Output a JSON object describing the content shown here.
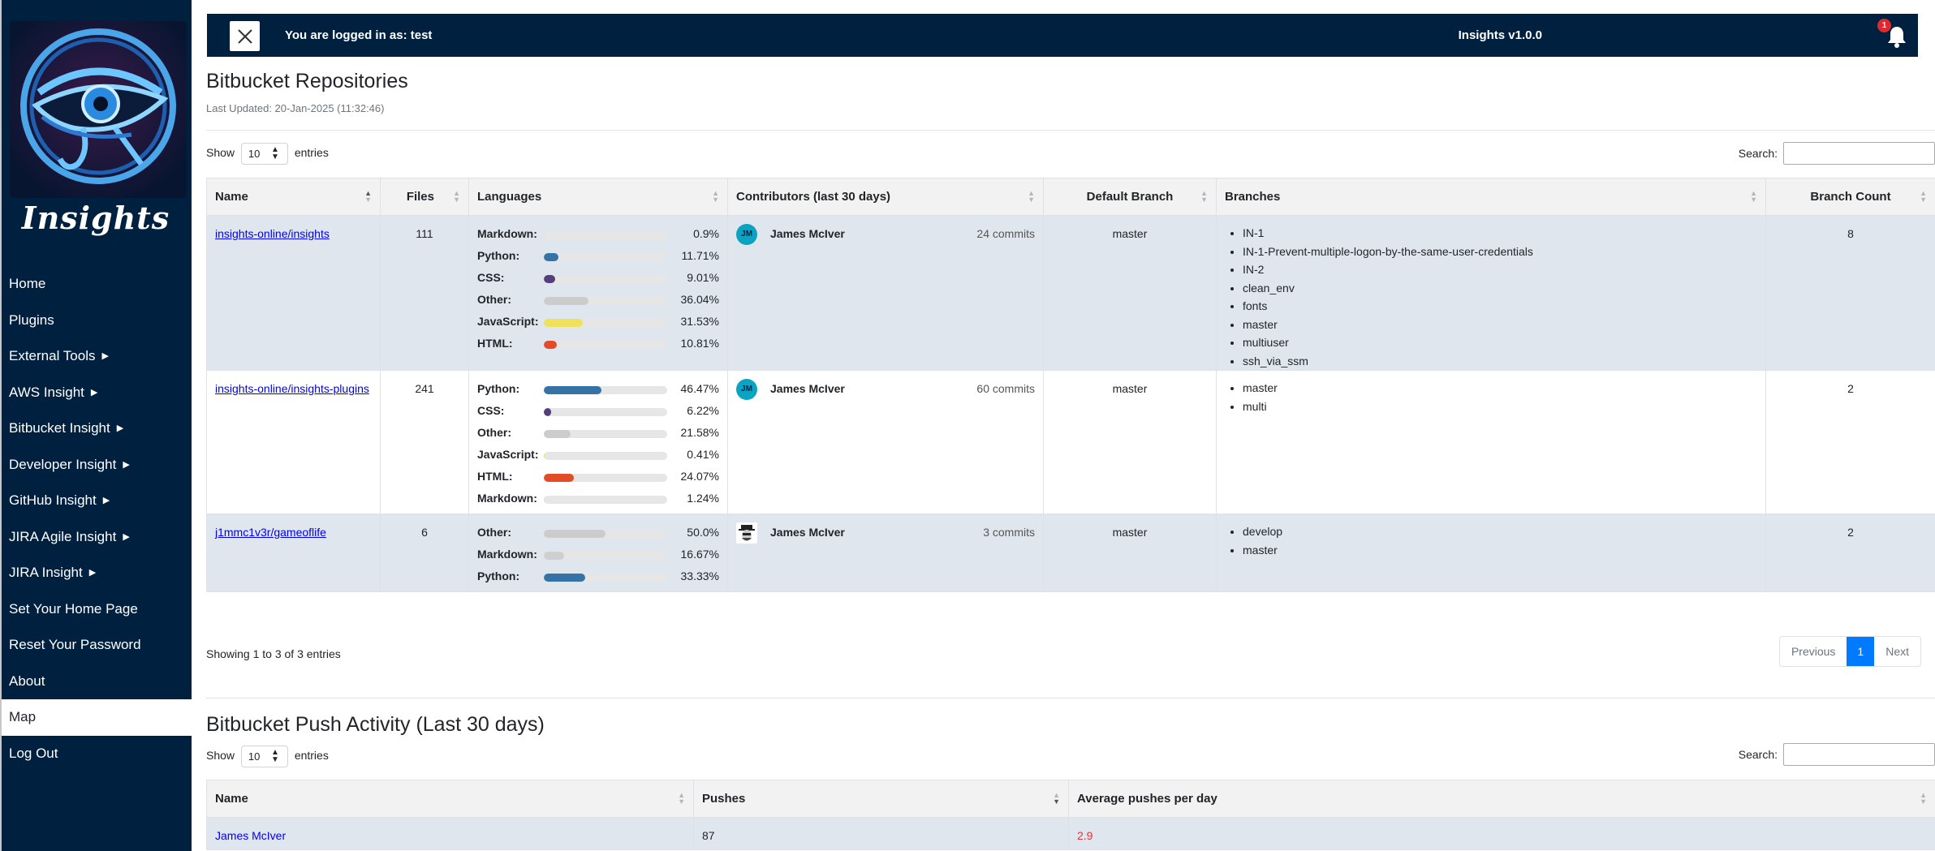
{
  "logo_text": "Insights",
  "nav": [
    {
      "label": "Home",
      "caret": false,
      "active": false
    },
    {
      "label": "Plugins",
      "caret": false,
      "active": false
    },
    {
      "label": "External Tools",
      "caret": true,
      "active": false
    },
    {
      "label": "AWS Insight",
      "caret": true,
      "active": false
    },
    {
      "label": "Bitbucket Insight",
      "caret": true,
      "active": false
    },
    {
      "label": "Developer Insight",
      "caret": true,
      "active": false
    },
    {
      "label": "GitHub Insight",
      "caret": true,
      "active": false
    },
    {
      "label": "JIRA Agile Insight",
      "caret": true,
      "active": false
    },
    {
      "label": "JIRA Insight",
      "caret": true,
      "active": false
    },
    {
      "label": "Set Your Home Page",
      "caret": false,
      "active": false
    },
    {
      "label": "Reset Your Password",
      "caret": false,
      "active": false
    },
    {
      "label": "About",
      "caret": false,
      "active": false
    },
    {
      "label": "Map",
      "caret": false,
      "active": true
    },
    {
      "label": "Log Out",
      "caret": false,
      "active": false
    }
  ],
  "header": {
    "login_text": "You are logged in as: test",
    "app_title": "Insights v1.0.0",
    "notification_count": "1"
  },
  "repos": {
    "title": "Bitbucket Repositories",
    "last_updated": "Last Updated: 20-Jan-2025 (11:32:46)",
    "show_label": "Show",
    "entries_label": "entries",
    "page_length": "10",
    "search_label": "Search:",
    "columns": [
      "Name",
      "Files",
      "Languages",
      "Contributors (last 30 days)",
      "Default Branch",
      "Branches",
      "Branch Count"
    ],
    "rows": [
      {
        "name": "insights-online/insights",
        "files": "111",
        "languages": [
          {
            "name": "Markdown:",
            "pct": "0.9%",
            "value": 0.9,
            "color": "#e0e0e0"
          },
          {
            "name": "Python:",
            "pct": "11.71%",
            "value": 11.71,
            "color": "#3572A5"
          },
          {
            "name": "CSS:",
            "pct": "9.01%",
            "value": 9.01,
            "color": "#563d7c"
          },
          {
            "name": "Other:",
            "pct": "36.04%",
            "value": 36.04,
            "color": "#cccccc"
          },
          {
            "name": "JavaScript:",
            "pct": "31.53%",
            "value": 31.53,
            "color": "#f1e05a"
          },
          {
            "name": "HTML:",
            "pct": "10.81%",
            "value": 10.81,
            "color": "#e34c26"
          }
        ],
        "contributors": [
          {
            "initials": "JM",
            "name": "James McIver",
            "commits": "24 commits",
            "avatar": "initials"
          }
        ],
        "default_branch": "master",
        "branches": [
          "IN-1",
          "IN-1-Prevent-multiple-logon-by-the-same-user-credentials",
          "IN-2",
          "clean_env",
          "fonts",
          "master",
          "multiuser",
          "ssh_via_ssm"
        ],
        "branch_count": "8"
      },
      {
        "name": "insights-online/insights-plugins",
        "files": "241",
        "languages": [
          {
            "name": "Python:",
            "pct": "46.47%",
            "value": 46.47,
            "color": "#3572A5"
          },
          {
            "name": "CSS:",
            "pct": "6.22%",
            "value": 6.22,
            "color": "#563d7c"
          },
          {
            "name": "Other:",
            "pct": "21.58%",
            "value": 21.58,
            "color": "#cccccc"
          },
          {
            "name": "JavaScript:",
            "pct": "0.41%",
            "value": 0.41,
            "color": "#f1e05a"
          },
          {
            "name": "HTML:",
            "pct": "24.07%",
            "value": 24.07,
            "color": "#e34c26"
          },
          {
            "name": "Markdown:",
            "pct": "1.24%",
            "value": 1.24,
            "color": "#e0e0e0"
          }
        ],
        "contributors": [
          {
            "initials": "JM",
            "name": "James McIver",
            "commits": "60 commits",
            "avatar": "initials"
          }
        ],
        "default_branch": "master",
        "branches": [
          "master",
          "multi"
        ],
        "branch_count": "2"
      },
      {
        "name": "j1mmc1v3r/gameoflife",
        "files": "6",
        "languages": [
          {
            "name": "Other:",
            "pct": "50.0%",
            "value": 50.0,
            "color": "#cccccc"
          },
          {
            "name": "Markdown:",
            "pct": "16.67%",
            "value": 16.67,
            "color": "#cfcfcf"
          },
          {
            "name": "Python:",
            "pct": "33.33%",
            "value": 33.33,
            "color": "#3572A5"
          }
        ],
        "contributors": [
          {
            "initials": "",
            "name": "James McIver",
            "commits": "3 commits",
            "avatar": "image"
          }
        ],
        "default_branch": "master",
        "branches": [
          "develop",
          "master"
        ],
        "branch_count": "2"
      }
    ],
    "showing": "Showing 1 to 3 of 3 entries",
    "pager": {
      "prev": "Previous",
      "page": "1",
      "next": "Next"
    }
  },
  "push": {
    "title": "Bitbucket Push Activity (Last 30 days)",
    "show_label": "Show",
    "entries_label": "entries",
    "page_length": "10",
    "search_label": "Search:",
    "columns": [
      "Name",
      "Pushes",
      "Average pushes per day"
    ],
    "rows": [
      {
        "name": "James McIver",
        "pushes": "87",
        "avg": "2.9"
      }
    ]
  }
}
